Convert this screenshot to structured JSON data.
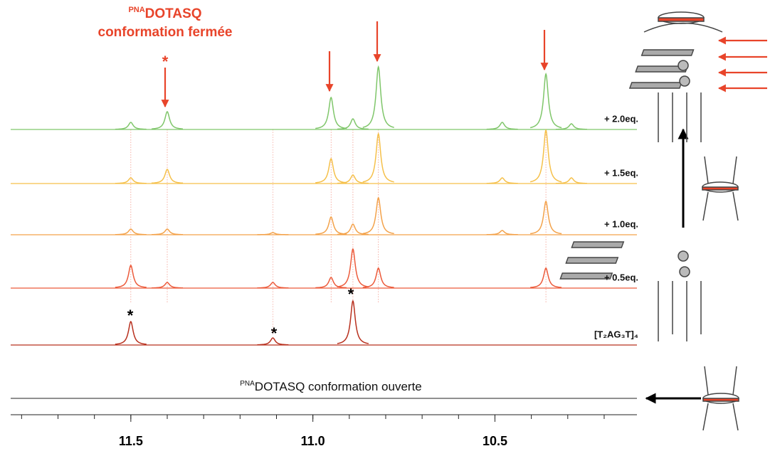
{
  "chart_data": {
    "type": "nmr",
    "annotation_top": {
      "sup": "PNA",
      "main": "DOTASQ",
      "line2": "conformation fermée"
    },
    "annotation_bottom": {
      "sup": "PNA",
      "main": "DOTASQ conformation ouverte"
    },
    "xlim": [
      11.83,
      10.11
    ],
    "xticks": [
      11.5,
      {
        "value": 11,
        "label": "11.0"
      },
      10.5
    ],
    "xminorticks": [
      11.8,
      11.7,
      11.6,
      11.5,
      11.4,
      11.3,
      11.2,
      11.1,
      11.0,
      10.9,
      10.8,
      10.7,
      10.6,
      10.5,
      10.4,
      10.3,
      10.2
    ],
    "series": [
      {
        "name": "+ 2.0eq.",
        "color": "#7fc66a",
        "peaks": [
          11.5,
          11.4,
          10.95,
          10.89,
          10.82,
          10.48,
          10.36,
          10.29
        ],
        "values": [
          10,
          25,
          45,
          15,
          88,
          10,
          78,
          8
        ]
      },
      {
        "name": "+ 1.5eq.",
        "color": "#f5c04a",
        "peaks": [
          11.5,
          11.4,
          10.95,
          10.89,
          10.82,
          10.48,
          10.36,
          10.29
        ],
        "values": [
          8,
          20,
          35,
          12,
          70,
          8,
          75,
          8
        ]
      },
      {
        "name": "+ 1.0eq.",
        "color": "#f3a24a",
        "peaks": [
          11.5,
          11.4,
          11.11,
          10.95,
          10.89,
          10.82,
          10.48,
          10.36
        ],
        "values": [
          8,
          8,
          3,
          25,
          15,
          52,
          6,
          47
        ]
      },
      {
        "name": "+ 0.5eq.",
        "color": "#ec5a3a",
        "peaks": [
          11.5,
          11.4,
          11.11,
          10.95,
          10.89,
          10.82,
          10.36
        ],
        "values": [
          32,
          8,
          8,
          15,
          55,
          28,
          28
        ]
      },
      {
        "name": "[T₂AG₃T]₄",
        "color": "#b8301e",
        "peaks": [
          11.5,
          11.11,
          10.89
        ],
        "values": [
          33,
          10,
          62
        ]
      }
    ]
  }
}
